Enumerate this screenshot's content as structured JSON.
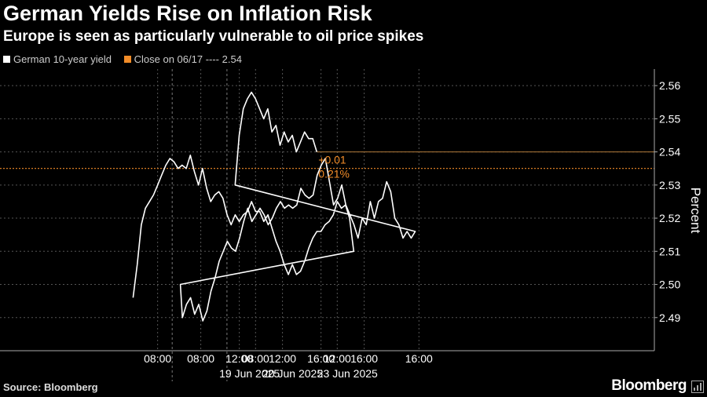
{
  "header": {
    "title": "German Yields Rise on Inflation Risk",
    "subtitle": "Europe is seen as particularly vulnerable to oil price spikes"
  },
  "legend": {
    "series_label": "German 10-year yield",
    "close_label": "Close on 06/17 ---- 2.54"
  },
  "footer": {
    "source": "Source: Bloomberg",
    "brand": "Bloomberg"
  },
  "colors": {
    "background": "#000000",
    "series": "#ffffff",
    "reference": "#f28c28",
    "grid": "#555555"
  },
  "chart_data": {
    "type": "line",
    "title": "German Yields Rise on Inflation Risk",
    "subtitle": "Europe is seen as particularly vulnerable to oil price spikes",
    "ylabel": "Percent",
    "ylim": [
      2.48,
      2.565
    ],
    "yticks": [
      2.49,
      2.5,
      2.51,
      2.52,
      2.53,
      2.54,
      2.55,
      2.56
    ],
    "ytick_labels": [
      "2.49",
      "2.50",
      "2.51",
      "2.52",
      "2.53",
      "2.54",
      "2.55",
      "2.56"
    ],
    "x_sessions": [
      "19 Jun 2025",
      "20 Jun 2025",
      "23 Jun 2025"
    ],
    "xticks": [
      {
        "session": 0,
        "hour": 8,
        "label": "08:00"
      },
      {
        "session": 0,
        "hour": 12,
        "label": "12:00"
      },
      {
        "session": 0,
        "hour": 16,
        "label": "16:00"
      },
      {
        "session": 1,
        "hour": 8,
        "label": "08:00"
      },
      {
        "session": 1,
        "hour": 12,
        "label": "12:00"
      },
      {
        "session": 1,
        "hour": 16,
        "label": "16:00"
      },
      {
        "session": 2,
        "hour": 8,
        "label": "08:00"
      },
      {
        "session": 2,
        "hour": 12,
        "label": "12:00"
      },
      {
        "session": 2,
        "hour": 16,
        "label": "16:00"
      }
    ],
    "reference_line": {
      "label": "Close on 06/17",
      "value": 2.535
    },
    "last_value_line": 2.54,
    "annotations": {
      "change": "+0.01",
      "change_pct": "0.21%"
    },
    "grid": true,
    "legend_position": "top-left",
    "series": [
      {
        "name": "German 10-year yield",
        "points": [
          [
            0,
            6.8,
            2.496
          ],
          [
            0,
            7.0,
            2.506
          ],
          [
            0,
            7.2,
            2.518
          ],
          [
            0,
            7.4,
            2.523
          ],
          [
            0,
            7.6,
            2.525
          ],
          [
            0,
            7.8,
            2.527
          ],
          [
            0,
            8.0,
            2.53
          ],
          [
            0,
            8.2,
            2.533
          ],
          [
            0,
            8.4,
            2.536
          ],
          [
            0,
            8.6,
            2.538
          ],
          [
            0,
            8.8,
            2.537
          ],
          [
            0,
            9.0,
            2.535
          ],
          [
            0,
            9.2,
            2.536
          ],
          [
            0,
            9.4,
            2.535
          ],
          [
            0,
            9.6,
            2.539
          ],
          [
            0,
            9.8,
            2.534
          ],
          [
            0,
            10.0,
            2.53
          ],
          [
            0,
            10.2,
            2.535
          ],
          [
            0,
            10.4,
            2.529
          ],
          [
            0,
            10.6,
            2.525
          ],
          [
            0,
            10.8,
            2.527
          ],
          [
            0,
            11.0,
            2.528
          ],
          [
            0,
            11.2,
            2.526
          ],
          [
            0,
            11.4,
            2.521
          ],
          [
            0,
            11.6,
            2.518
          ],
          [
            0,
            11.8,
            2.521
          ],
          [
            0,
            12.0,
            2.519
          ],
          [
            0,
            12.2,
            2.521
          ],
          [
            0,
            12.4,
            2.522
          ],
          [
            0,
            12.6,
            2.525
          ],
          [
            0,
            12.8,
            2.522
          ],
          [
            0,
            13.0,
            2.522
          ],
          [
            0,
            13.2,
            2.519
          ],
          [
            0,
            13.4,
            2.521
          ],
          [
            0,
            13.6,
            2.517
          ],
          [
            0,
            13.8,
            2.513
          ],
          [
            0,
            14.0,
            2.51
          ],
          [
            0,
            14.2,
            2.506
          ],
          [
            0,
            14.4,
            2.503
          ],
          [
            0,
            14.6,
            2.506
          ],
          [
            0,
            14.8,
            2.503
          ],
          [
            0,
            15.0,
            2.504
          ],
          [
            0,
            15.2,
            2.507
          ],
          [
            0,
            15.4,
            2.511
          ],
          [
            0,
            15.6,
            2.514
          ],
          [
            0,
            15.8,
            2.516
          ],
          [
            0,
            16.0,
            2.516
          ],
          [
            0,
            16.2,
            2.518
          ],
          [
            0,
            16.4,
            2.519
          ],
          [
            0,
            16.6,
            2.521
          ],
          [
            0,
            16.8,
            2.525
          ],
          [
            0,
            17.0,
            2.523
          ],
          [
            0,
            17.2,
            2.524
          ],
          [
            0,
            17.4,
            2.52
          ],
          [
            0,
            17.6,
            2.51
          ],
          [
            1,
            7.0,
            2.5
          ],
          [
            1,
            7.1,
            2.49
          ],
          [
            1,
            7.3,
            2.494
          ],
          [
            1,
            7.5,
            2.496
          ],
          [
            1,
            7.7,
            2.491
          ],
          [
            1,
            7.9,
            2.494
          ],
          [
            1,
            8.1,
            2.489
          ],
          [
            1,
            8.3,
            2.492
          ],
          [
            1,
            8.5,
            2.498
          ],
          [
            1,
            8.7,
            2.502
          ],
          [
            1,
            8.9,
            2.507
          ],
          [
            1,
            9.1,
            2.51
          ],
          [
            1,
            9.3,
            2.513
          ],
          [
            1,
            9.5,
            2.511
          ],
          [
            1,
            9.7,
            2.51
          ],
          [
            1,
            9.9,
            2.514
          ],
          [
            1,
            10.1,
            2.519
          ],
          [
            1,
            10.3,
            2.523
          ],
          [
            1,
            10.5,
            2.519
          ],
          [
            1,
            10.7,
            2.521
          ],
          [
            1,
            10.9,
            2.523
          ],
          [
            1,
            11.1,
            2.521
          ],
          [
            1,
            11.3,
            2.518
          ],
          [
            1,
            11.5,
            2.52
          ],
          [
            1,
            11.7,
            2.523
          ],
          [
            1,
            11.9,
            2.525
          ],
          [
            1,
            12.1,
            2.523
          ],
          [
            1,
            12.3,
            2.524
          ],
          [
            1,
            12.5,
            2.523
          ],
          [
            1,
            12.7,
            2.524
          ],
          [
            1,
            12.9,
            2.529
          ],
          [
            1,
            13.1,
            2.527
          ],
          [
            1,
            13.3,
            2.526
          ],
          [
            1,
            13.5,
            2.527
          ],
          [
            1,
            13.7,
            2.533
          ],
          [
            1,
            13.9,
            2.536
          ],
          [
            1,
            14.1,
            2.538
          ],
          [
            1,
            14.3,
            2.531
          ],
          [
            1,
            14.5,
            2.524
          ],
          [
            1,
            14.7,
            2.526
          ],
          [
            1,
            14.9,
            2.53
          ],
          [
            1,
            15.1,
            2.524
          ],
          [
            1,
            15.3,
            2.521
          ],
          [
            1,
            15.5,
            2.518
          ],
          [
            1,
            15.7,
            2.514
          ],
          [
            1,
            15.9,
            2.52
          ],
          [
            1,
            16.1,
            2.518
          ],
          [
            1,
            16.3,
            2.525
          ],
          [
            1,
            16.5,
            2.52
          ],
          [
            1,
            16.7,
            2.525
          ],
          [
            1,
            16.9,
            2.526
          ],
          [
            1,
            17.1,
            2.531
          ],
          [
            1,
            17.3,
            2.528
          ],
          [
            1,
            17.5,
            2.52
          ],
          [
            1,
            17.7,
            2.518
          ],
          [
            1,
            17.9,
            2.514
          ],
          [
            1,
            18.1,
            2.516
          ],
          [
            1,
            18.3,
            2.514
          ],
          [
            1,
            18.5,
            2.516
          ],
          [
            2,
            7.0,
            2.53
          ],
          [
            2,
            7.2,
            2.545
          ],
          [
            2,
            7.4,
            2.553
          ],
          [
            2,
            7.6,
            2.556
          ],
          [
            2,
            7.8,
            2.558
          ],
          [
            2,
            8.0,
            2.556
          ],
          [
            2,
            8.2,
            2.553
          ],
          [
            2,
            8.4,
            2.55
          ],
          [
            2,
            8.6,
            2.553
          ],
          [
            2,
            8.8,
            2.546
          ],
          [
            2,
            9.0,
            2.548
          ],
          [
            2,
            9.2,
            2.542
          ],
          [
            2,
            9.4,
            2.546
          ],
          [
            2,
            9.6,
            2.543
          ],
          [
            2,
            9.8,
            2.545
          ],
          [
            2,
            10.0,
            2.54
          ],
          [
            2,
            10.2,
            2.543
          ],
          [
            2,
            10.4,
            2.546
          ],
          [
            2,
            10.6,
            2.544
          ],
          [
            2,
            10.8,
            2.544
          ],
          [
            2,
            11.0,
            2.54
          ]
        ]
      }
    ]
  }
}
